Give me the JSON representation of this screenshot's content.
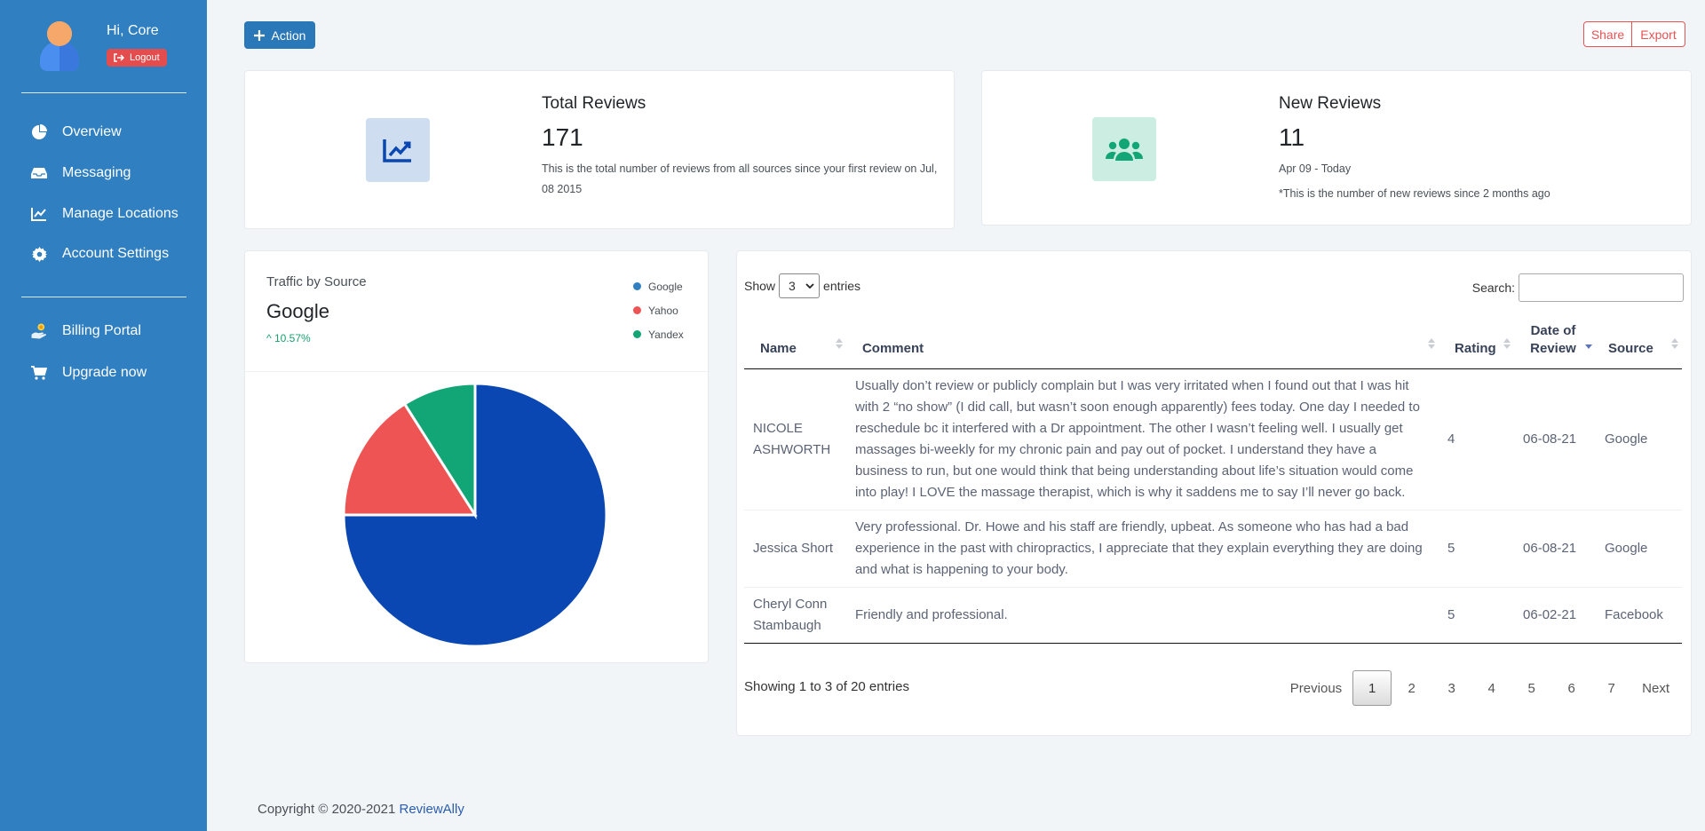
{
  "sidebar": {
    "greeting": "Hi, Core",
    "logout_label": "Logout",
    "nav": [
      {
        "label": "Overview",
        "icon": "pie-chart-icon"
      },
      {
        "label": "Messaging",
        "icon": "inbox-icon"
      },
      {
        "label": "Manage Locations",
        "icon": "line-chart-icon"
      },
      {
        "label": "Account Settings",
        "icon": "gear-icon"
      }
    ],
    "nav2": [
      {
        "label": "Billing Portal",
        "icon": "billing-hand-icon"
      },
      {
        "label": "Upgrade now",
        "icon": "cart-icon"
      }
    ]
  },
  "toolbar": {
    "action_label": "Action",
    "share_label": "Share",
    "export_label": "Export"
  },
  "stats": {
    "total": {
      "title": "Total Reviews",
      "value": "171",
      "description": "This is the total number of reviews from all sources since your first review on Jul, 08 2015"
    },
    "new": {
      "title": "New Reviews",
      "value": "11",
      "range": "Apr 09 - Today",
      "note": "*This is the number of new reviews since 2 months ago"
    }
  },
  "traffic": {
    "title": "Traffic by Source",
    "top_source": "Google",
    "change": "10.57%",
    "legend": [
      "Google",
      "Yahoo",
      "Yandex"
    ]
  },
  "chart_data": {
    "type": "pie",
    "categories": [
      "Google",
      "Yahoo",
      "Yandex"
    ],
    "values": [
      75,
      16,
      9
    ],
    "colors": [
      "#0b47b2",
      "#ee5454",
      "#12a575"
    ],
    "legend_position": "top-right"
  },
  "reviews": {
    "show_label": "Show",
    "page_size": "3",
    "entries_label": "entries",
    "search_label": "Search:",
    "columns": {
      "name": "Name",
      "comment": "Comment",
      "rating": "Rating",
      "date": "Date of Review",
      "source": "Source"
    },
    "rows": [
      {
        "name": "NICOLE ASHWORTH",
        "comment": "Usually don’t review or publicly complain but I was very irritated when I found out that I was hit with 2 “no show” (I did call, but wasn’t soon enough apparently) fees today. One day I needed to reschedule bc it interfered with a Dr appointment. The other I wasn’t feeling well. I usually get massages bi-weekly for my chronic pain and pay out of pocket. I understand they have a business to run, but one would think that being understanding about life’s situation would come into play! I LOVE the massage therapist, which is why it saddens me to say I’ll never go back.",
        "rating": "4",
        "date": "06-08-21",
        "source": "Google"
      },
      {
        "name": "Jessica Short",
        "comment": "Very professional. Dr. Howe and his staff are friendly, upbeat. As someone who has had a bad experience in the past with chiropractics, I appreciate that they explain everything they are doing and what is happening to your body.",
        "rating": "5",
        "date": "06-08-21",
        "source": "Google"
      },
      {
        "name": "Cheryl Conn Stambaugh",
        "comment": "Friendly and professional.",
        "rating": "5",
        "date": "06-02-21",
        "source": "Facebook"
      }
    ],
    "info": "Showing 1 to 3 of 20 entries",
    "pagination": {
      "previous": "Previous",
      "pages": [
        "1",
        "2",
        "3",
        "4",
        "5",
        "6",
        "7"
      ],
      "current": "1",
      "next": "Next"
    }
  },
  "footer": {
    "copyright": "Copyright © 2020-2021",
    "brand": "ReviewAlly"
  }
}
